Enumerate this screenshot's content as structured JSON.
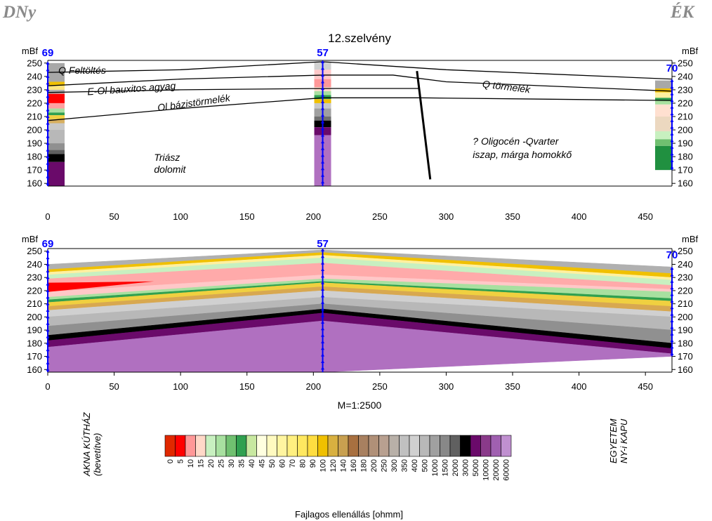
{
  "title": "12.szelvény",
  "directions": {
    "left": "DNy",
    "right": "ÉK"
  },
  "y_unit": "mBf",
  "scale_label": "M=1:2500",
  "legend_title": "Fajlagos ellenállás [ohmm]",
  "left_site": {
    "line1": "AKNA KÚTHÁZ",
    "line2": "(bevetítve)"
  },
  "right_site": {
    "line1": "EGYETEM",
    "line2": "NY-i KAPU"
  },
  "colors": {
    "borehole_marker": "#0000ff",
    "grid_line": "#000000"
  },
  "chart_data": [
    {
      "type": "geologic_section",
      "title": "12.szelvény",
      "xlabel": "",
      "ylabel": "mBf",
      "xlim": [
        0,
        470
      ],
      "ylim": [
        158,
        252
      ],
      "xticks": [
        0,
        50,
        100,
        150,
        200,
        250,
        300,
        350,
        400,
        450
      ],
      "yticks": [
        160,
        170,
        180,
        190,
        200,
        210,
        220,
        230,
        240,
        250
      ],
      "boreholes": [
        {
          "name": "69",
          "x": 0,
          "top": 250,
          "bottom": 158,
          "layers": [
            {
              "top": 250,
              "bottom": 236,
              "color": "#a8a8a8"
            },
            {
              "top": 236,
              "bottom": 233,
              "color": "#f0c000"
            },
            {
              "top": 233,
              "bottom": 230,
              "color": "#ffe680"
            },
            {
              "top": 230,
              "bottom": 227,
              "color": "#b0b0b0"
            },
            {
              "top": 227,
              "bottom": 220,
              "color": "#ff0000"
            },
            {
              "top": 220,
              "bottom": 216,
              "color": "#ffa0a0"
            },
            {
              "top": 216,
              "bottom": 213,
              "color": "#a8e0a0"
            },
            {
              "top": 213,
              "bottom": 211,
              "color": "#30a050"
            },
            {
              "top": 211,
              "bottom": 208,
              "color": "#f0d040"
            },
            {
              "top": 208,
              "bottom": 205,
              "color": "#d8b060"
            },
            {
              "top": 205,
              "bottom": 200,
              "color": "#c8c8c8"
            },
            {
              "top": 200,
              "bottom": 190,
              "color": "#b8b8b8"
            },
            {
              "top": 190,
              "bottom": 185,
              "color": "#909090"
            },
            {
              "top": 185,
              "bottom": 182,
              "color": "#606060"
            },
            {
              "top": 182,
              "bottom": 176,
              "color": "#000000"
            },
            {
              "top": 176,
              "bottom": 158,
              "color": "#6a0a6a"
            }
          ]
        },
        {
          "name": "57",
          "x": 207,
          "top": 251,
          "bottom": 158,
          "layers": [
            {
              "top": 251,
              "bottom": 245,
              "color": "#d0d0d0"
            },
            {
              "top": 245,
              "bottom": 238,
              "color": "#ffc8c8"
            },
            {
              "top": 238,
              "bottom": 232,
              "color": "#ff9898"
            },
            {
              "top": 232,
              "bottom": 229,
              "color": "#ffd8c8"
            },
            {
              "top": 229,
              "bottom": 226,
              "color": "#a8e0a0"
            },
            {
              "top": 226,
              "bottom": 223,
              "color": "#30a050"
            },
            {
              "top": 223,
              "bottom": 220,
              "color": "#f0c000"
            },
            {
              "top": 220,
              "bottom": 216,
              "color": "#c8c8c8"
            },
            {
              "top": 216,
              "bottom": 210,
              "color": "#a0a0a0"
            },
            {
              "top": 210,
              "bottom": 207,
              "color": "#707070"
            },
            {
              "top": 207,
              "bottom": 202,
              "color": "#000000"
            },
            {
              "top": 202,
              "bottom": 196,
              "color": "#6a0a6a"
            },
            {
              "top": 196,
              "bottom": 158,
              "color": "#b070c0"
            }
          ]
        },
        {
          "name": "70",
          "x": 470,
          "top": 237,
          "bottom": 170,
          "layers": [
            {
              "top": 237,
              "bottom": 231,
              "color": "#a8a8a8"
            },
            {
              "top": 231,
              "bottom": 228,
              "color": "#f0c000"
            },
            {
              "top": 228,
              "bottom": 224,
              "color": "#fff0a0"
            },
            {
              "top": 224,
              "bottom": 222,
              "color": "#30a050"
            },
            {
              "top": 222,
              "bottom": 219,
              "color": "#a8e0a0"
            },
            {
              "top": 219,
              "bottom": 210,
              "color": "#ffe0d0"
            },
            {
              "top": 210,
              "bottom": 199,
              "color": "#ecd8c0"
            },
            {
              "top": 199,
              "bottom": 193,
              "color": "#c8f0c0"
            },
            {
              "top": 193,
              "bottom": 188,
              "color": "#70c070"
            },
            {
              "top": 188,
              "bottom": 170,
              "color": "#209040"
            }
          ]
        }
      ],
      "boundaries": [
        {
          "name": "top",
          "x": [
            0,
            100,
            207,
            300,
            470
          ],
          "y": [
            243,
            245,
            251,
            245,
            238
          ]
        },
        {
          "name": "base_q",
          "x": [
            0,
            100,
            207,
            260,
            300,
            470
          ],
          "y": [
            233,
            238,
            241,
            241,
            236,
            229
          ]
        },
        {
          "name": "base_e",
          "x": [
            0,
            100,
            207,
            280
          ],
          "y": [
            228,
            230,
            231,
            231
          ]
        },
        {
          "name": "base_ol",
          "x": [
            0,
            100,
            207,
            280
          ],
          "y": [
            207,
            216,
            224,
            224
          ]
        },
        {
          "name": "base_70",
          "x": [
            280,
            470
          ],
          "y": [
            224,
            222
          ]
        }
      ],
      "fault": {
        "x": [
          278,
          288
        ],
        "y": [
          244,
          163
        ]
      },
      "annotations": [
        {
          "text": "Q Feltöltés",
          "x": 8,
          "y": 242
        },
        {
          "text": "E-Ol bauxitos agyag",
          "x": 30,
          "y": 226,
          "angle": -4
        },
        {
          "text": "Ol bázistörmelék",
          "x": 83,
          "y": 214,
          "angle": -8
        },
        {
          "text": "Triász",
          "x": 80,
          "y": 177
        },
        {
          "text": "dolomit",
          "x": 80,
          "y": 168
        },
        {
          "text": "Q törmelék",
          "x": 327,
          "y": 232,
          "angle": 7
        },
        {
          "text": "? Oligocén -Qvarter",
          "x": 320,
          "y": 189
        },
        {
          "text": "iszap, márga homokkő",
          "x": 320,
          "y": 179
        }
      ]
    },
    {
      "type": "resistivity_section",
      "xlabel": "M=1:2500",
      "ylabel": "mBf",
      "xlim": [
        0,
        470
      ],
      "ylim": [
        158,
        252
      ],
      "xticks": [
        0,
        50,
        100,
        150,
        200,
        250,
        300,
        350,
        400,
        450
      ],
      "yticks": [
        160,
        170,
        180,
        190,
        200,
        210,
        220,
        230,
        240,
        250
      ],
      "boreholes": [
        {
          "name": "69",
          "x": 0,
          "top": 250,
          "bottom": 158
        },
        {
          "name": "57",
          "x": 207,
          "top": 251,
          "bottom": 158
        },
        {
          "name": "70",
          "x": 470,
          "top": 237,
          "bottom": 170
        }
      ],
      "layer_x": [
        0,
        207,
        470
      ],
      "layers": [
        {
          "top": [
            240,
            251,
            238
          ],
          "bottom": [
            236,
            249,
            233
          ],
          "color": "#b0b0b0"
        },
        {
          "top": [
            236,
            249,
            233
          ],
          "bottom": [
            234,
            247,
            230
          ],
          "color": "#f0c000"
        },
        {
          "top": [
            234,
            247,
            230
          ],
          "bottom": [
            232,
            245,
            228
          ],
          "color": "#fff0a0"
        },
        {
          "top": [
            232,
            245,
            228
          ],
          "bottom": [
            229,
            241,
            224
          ],
          "color": "#c8f0c0"
        },
        {
          "top": [
            229,
            241,
            224
          ],
          "bottom": [
            219,
            232,
            221
          ],
          "color": "#ffaaaa"
        },
        {
          "top": [
            219,
            232,
            221
          ],
          "bottom": [
            215,
            229,
            219
          ],
          "color": "#ffc8c8"
        },
        {
          "top": [
            215,
            229,
            219
          ],
          "bottom": [
            213,
            227,
            214
          ],
          "color": "#a8e0a0"
        },
        {
          "top": [
            213,
            227,
            214
          ],
          "bottom": [
            211,
            226,
            212
          ],
          "color": "#30a050"
        },
        {
          "top": [
            211,
            226,
            212
          ],
          "bottom": [
            208,
            223,
            208
          ],
          "color": "#f0d040"
        },
        {
          "top": [
            208,
            223,
            208
          ],
          "bottom": [
            205,
            220,
            204
          ],
          "color": "#d8a850"
        },
        {
          "top": [
            205,
            220,
            204
          ],
          "bottom": [
            200,
            215,
            200
          ],
          "color": "#d0d0d0"
        },
        {
          "top": [
            200,
            215,
            200
          ],
          "bottom": [
            193,
            210,
            190
          ],
          "color": "#b8b8b8"
        },
        {
          "top": [
            193,
            210,
            190
          ],
          "bottom": [
            186,
            206,
            180
          ],
          "color": "#909090"
        },
        {
          "top": [
            186,
            206,
            180
          ],
          "bottom": [
            182,
            203,
            176
          ],
          "color": "#000000"
        },
        {
          "top": [
            182,
            203,
            176
          ],
          "bottom": [
            177,
            197,
            172
          ],
          "color": "#6a0a6a"
        },
        {
          "top": [
            177,
            197,
            172
          ],
          "bottom": [
            158,
            158,
            170
          ],
          "color": "#b070c0"
        }
      ],
      "anomalies": [
        {
          "polygon_x": [
            0,
            80,
            0
          ],
          "polygon_y": [
            226,
            227,
            219
          ],
          "color": "#ff0000"
        }
      ]
    }
  ],
  "legend": {
    "colors": [
      "#e02800",
      "#ff0000",
      "#ff9898",
      "#ffd8c8",
      "#c8f0c0",
      "#a8e0a0",
      "#70c070",
      "#30a050",
      "#c8e8a0",
      "#ffffe0",
      "#fffac0",
      "#fff5a0",
      "#fff080",
      "#ffe860",
      "#ffdd40",
      "#f0c000",
      "#d8b040",
      "#c8a050",
      "#a87040",
      "#a88060",
      "#b09078",
      "#b8a090",
      "#b8b0a8",
      "#c0c0c0",
      "#d0d0d0",
      "#b8b8b8",
      "#a0a0a0",
      "#888888",
      "#606060",
      "#000000",
      "#6a0a6a",
      "#8a3a8a",
      "#a060b0",
      "#c090d0"
    ],
    "labels": [
      "0",
      "5",
      "10",
      "15",
      "20",
      "25",
      "30",
      "35",
      "40",
      "45",
      "50",
      "60",
      "70",
      "80",
      "90",
      "100",
      "120",
      "140",
      "160",
      "180",
      "200",
      "250",
      "300",
      "350",
      "400",
      "500",
      "1000",
      "1500",
      "2000",
      "3000",
      "5000",
      "10000",
      "20000",
      "60000"
    ]
  }
}
